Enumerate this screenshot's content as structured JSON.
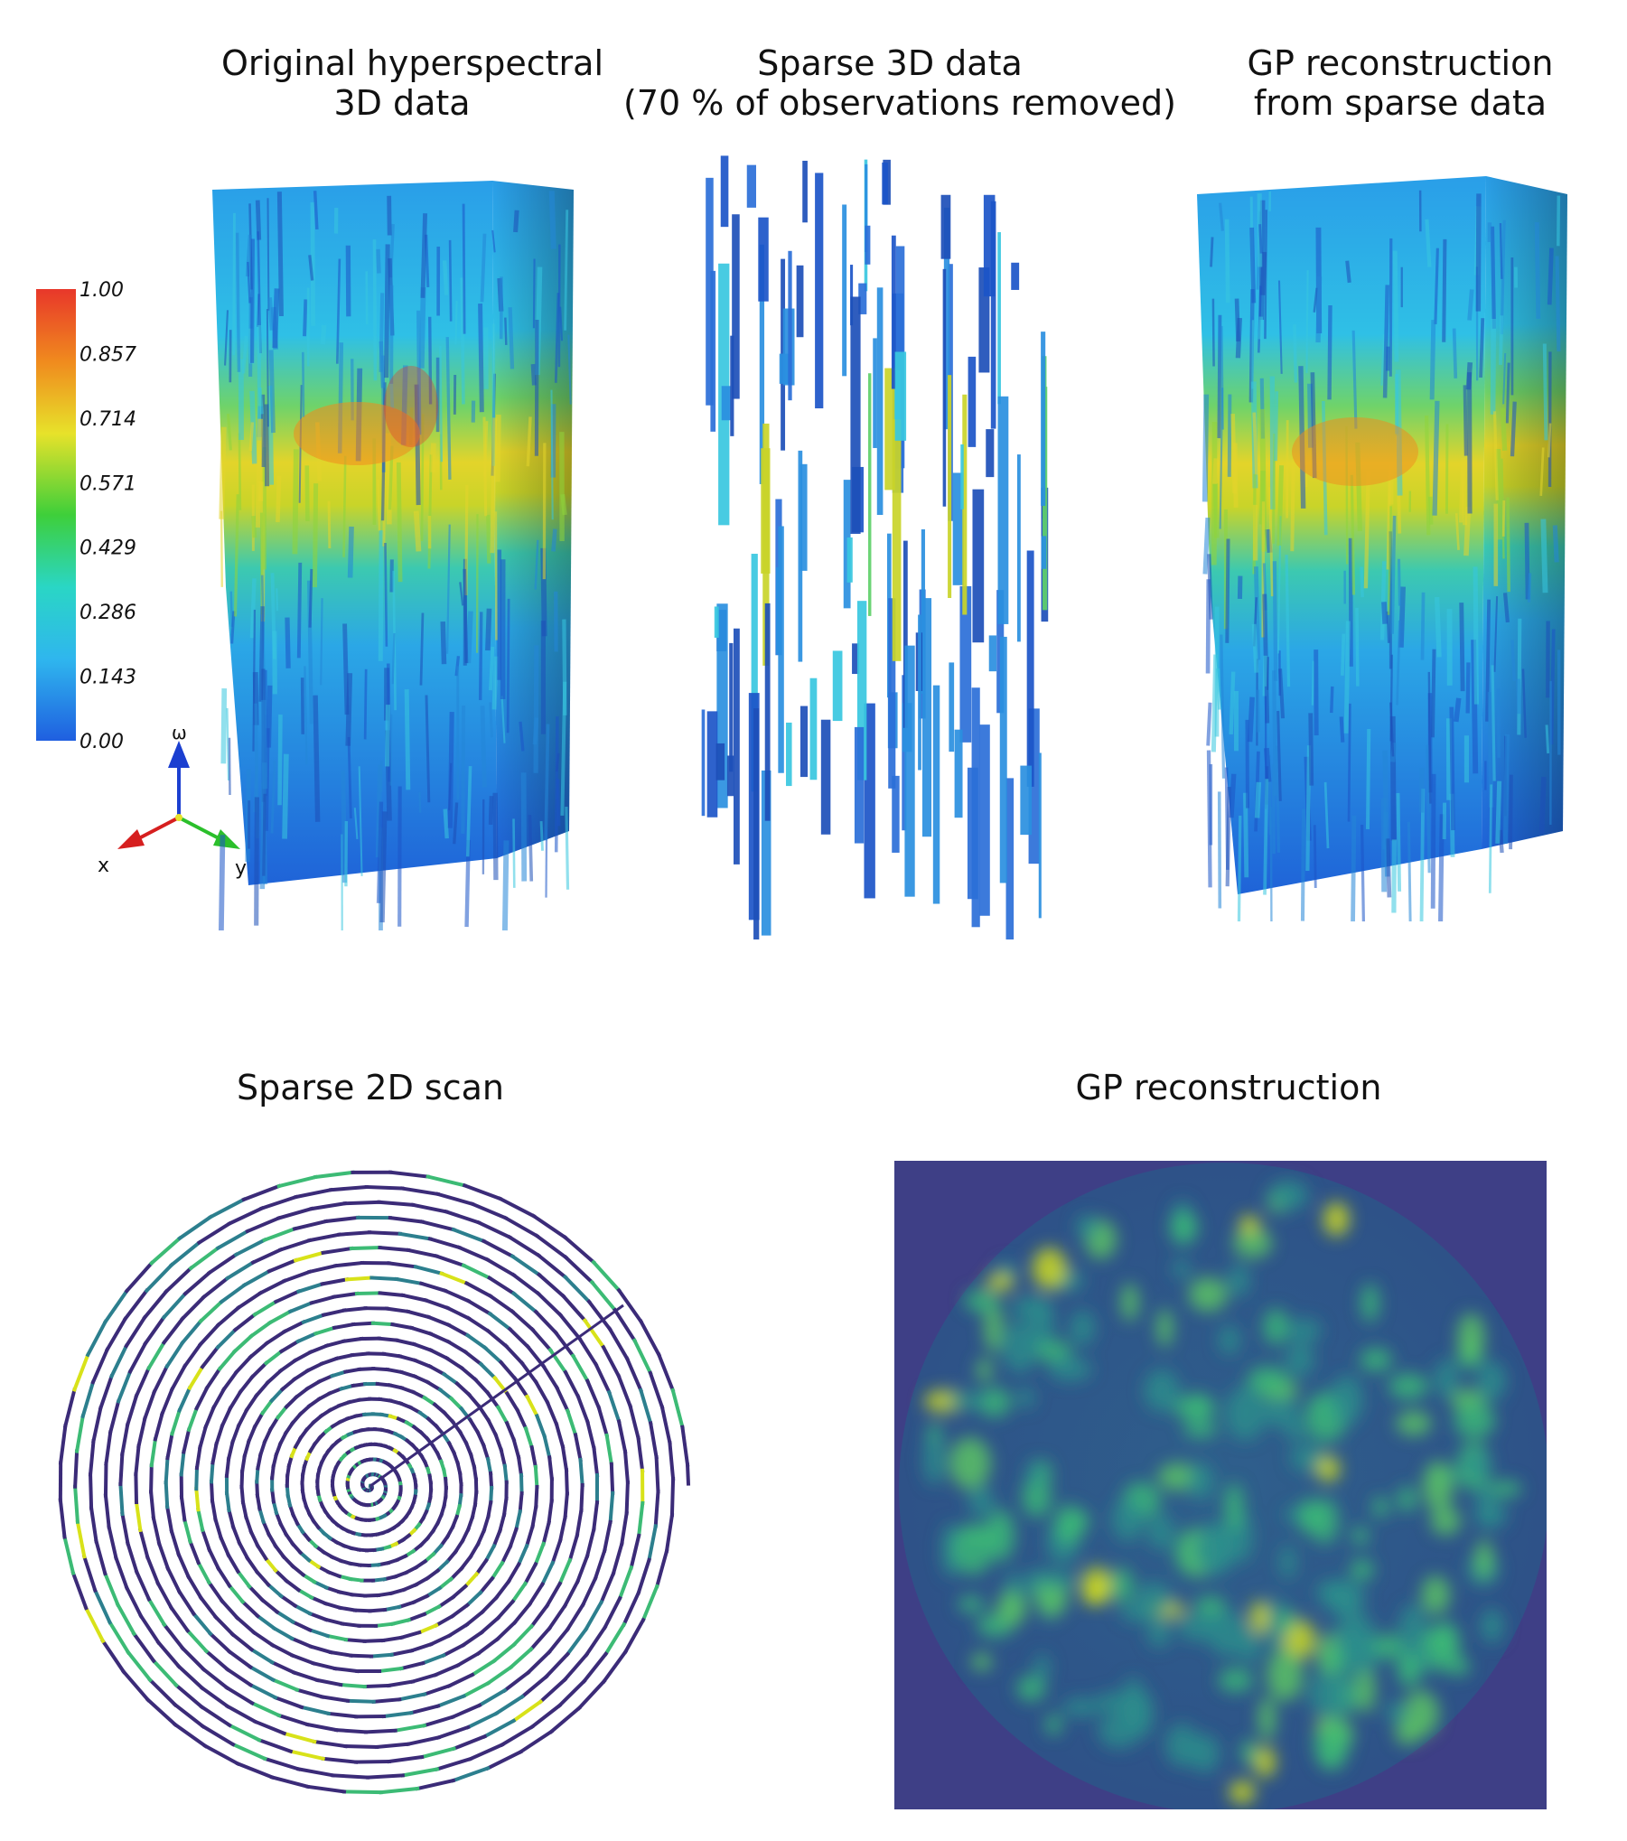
{
  "titles": {
    "original_line1": "Original hyperspectral",
    "original_line2": "3D data",
    "sparse3d_line1": "Sparse 3D data",
    "sparse3d_line2": "(70 % of observations removed)",
    "gp3d_line1": "GP reconstruction",
    "gp3d_line2": "from sparse data",
    "sparse2d": "Sparse 2D scan",
    "gp2d": "GP reconstruction"
  },
  "colorbar": {
    "ticks": [
      "1.00",
      "0.857",
      "0.714",
      "0.571",
      "0.429",
      "0.286",
      "0.143",
      "0.00"
    ],
    "colors": [
      "#e8372a",
      "#f08a1e",
      "#e7e22a",
      "#3ecf3a",
      "#2ad6c5",
      "#2fb6ee",
      "#1f5fe0"
    ]
  },
  "axes": {
    "omega_label": "ω",
    "x_label": "x",
    "y_label": "y",
    "omega_color": "#1b3fd0",
    "x_color": "#d61f1f",
    "y_color": "#2bbf2b"
  },
  "palette": {
    "viridis_dark": "#3b2b78",
    "viridis_mid": "#2c7f8e",
    "viridis_light": "#3cbb75",
    "viridis_yellow": "#d8e219"
  }
}
